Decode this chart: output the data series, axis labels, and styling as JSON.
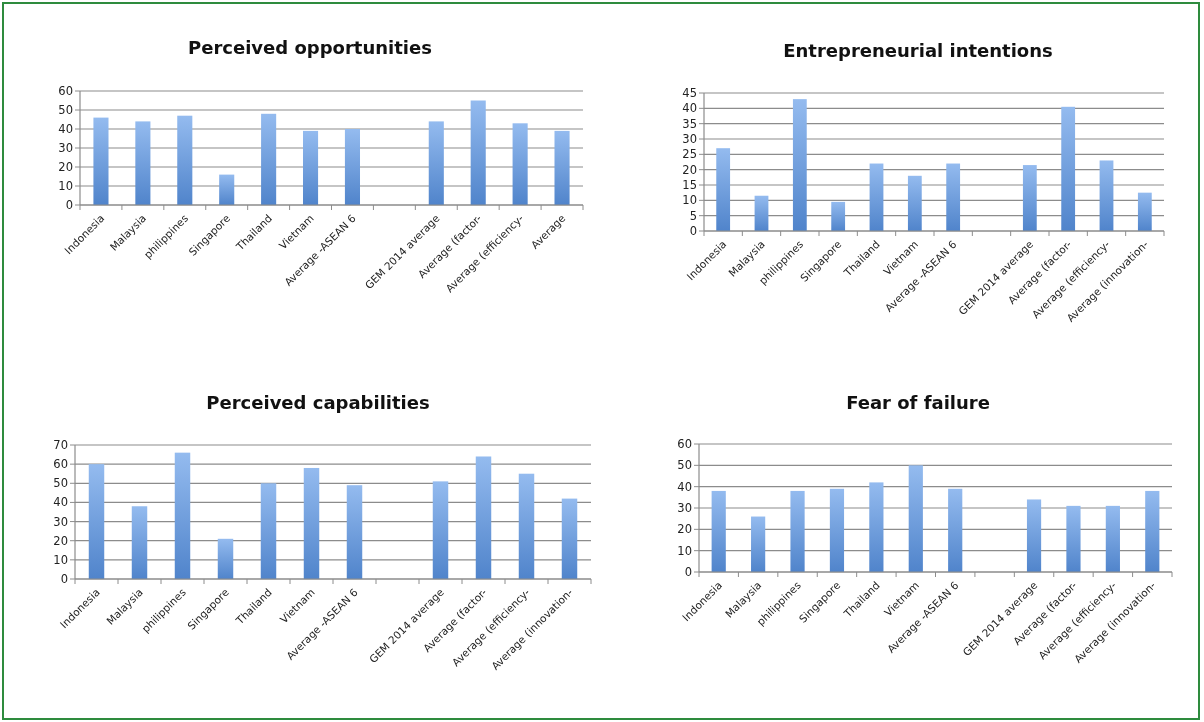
{
  "chart_data": [
    {
      "type": "bar",
      "title": "Perceived opportunities",
      "categories": [
        "Indonesia",
        "Malaysia",
        "philippines",
        "Singapore",
        "Thailand",
        "Vietnam",
        "Average -ASEAN 6",
        null,
        "GEM 2014 average",
        "Average (factor-",
        "Average (efficiency-",
        "Average"
      ],
      "values": [
        46,
        44,
        47,
        16,
        48,
        39,
        40,
        null,
        44,
        55,
        43,
        39
      ],
      "color": "#5b96e6",
      "ylim": [
        0,
        60
      ],
      "yticks": [
        0,
        10,
        20,
        30,
        40,
        50,
        60
      ],
      "grid": "y"
    },
    {
      "type": "bar",
      "title": "Entrepreneurial intentions",
      "categories": [
        "Indonesia",
        "Malaysia",
        "philippines",
        "Singapore",
        "Thailand",
        "Vietnam",
        "Average -ASEAN 6",
        null,
        "GEM 2014 average",
        "Average (factor-",
        "Average (efficiency-",
        "Average (innovation-"
      ],
      "values": [
        27,
        11.5,
        43,
        9.5,
        22,
        18,
        22,
        null,
        21.5,
        40.5,
        23,
        12.5
      ],
      "color": "#5b96e6",
      "ylim": [
        0,
        45
      ],
      "yticks": [
        0,
        5,
        10,
        15,
        20,
        25,
        30,
        35,
        40,
        45
      ],
      "grid": "y"
    },
    {
      "type": "bar",
      "title": "Perceived capabilities",
      "categories": [
        "Indonesia",
        "Malaysia",
        "philippines",
        "Singapore",
        "Thailand",
        "Vietnam",
        "Average -ASEAN 6",
        null,
        "GEM 2014 average",
        "Average (factor-",
        "Average (efficiency-",
        "Average (innovation-"
      ],
      "values": [
        60,
        38,
        66,
        21,
        50,
        58,
        49,
        null,
        51,
        64,
        55,
        42
      ],
      "color": "#5b96e6",
      "ylim": [
        0,
        70
      ],
      "yticks": [
        0,
        10,
        20,
        30,
        40,
        50,
        60,
        70
      ],
      "grid": "y"
    },
    {
      "type": "bar",
      "title": "Fear of failure",
      "categories": [
        "Indonesia",
        "Malaysia",
        "philippines",
        "Singapore",
        "Thailand",
        "Vietnam",
        "Average -ASEAN 6",
        null,
        "GEM 2014 average",
        "Average (factor-",
        "Average (efficiency-",
        "Average (innovation-"
      ],
      "values": [
        38,
        26,
        38,
        39,
        42,
        50,
        39,
        null,
        34,
        31,
        31,
        38
      ],
      "color": "#5b96e6",
      "ylim": [
        0,
        60
      ],
      "yticks": [
        0,
        10,
        20,
        30,
        40,
        50,
        60
      ],
      "grid": "y"
    }
  ]
}
